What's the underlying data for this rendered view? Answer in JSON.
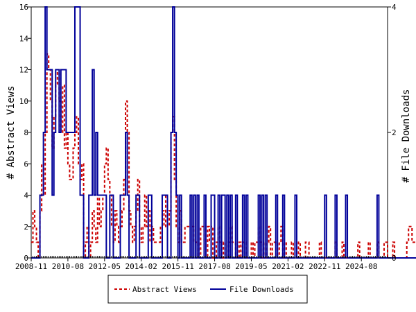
{
  "chart_data": {
    "type": "line",
    "y_left_label": "# Abstract Views",
    "y_right_label": "# File Downloads",
    "y_left_lim": [
      0,
      16
    ],
    "y_right_lim": [
      0,
      4
    ],
    "y_left_ticks": [
      "0",
      "2",
      "4",
      "6",
      "8",
      "10",
      "12",
      "14",
      "16"
    ],
    "y_right_ticks": [
      "0",
      "2",
      "4"
    ],
    "x_start": "2008-11",
    "x_end": "2025-11",
    "x_tick_labels": [
      "2008-11",
      "2010-08",
      "2012-05",
      "2014-02",
      "2015-11",
      "2017-08",
      "2019-05",
      "2021-02",
      "2022-11",
      "2024-08"
    ],
    "legend_position": "bottom",
    "grid": false,
    "colors": {
      "abstract_views": "#cc0000",
      "file_downloads": "#000099"
    },
    "series": [
      {
        "name": "Abstract Views",
        "axis": "left",
        "style": "dashed",
        "values": [
          1,
          3,
          2,
          1,
          0,
          3,
          6,
          4,
          8,
          13,
          12,
          10,
          7,
          9,
          11,
          12,
          10,
          8,
          11,
          7,
          8,
          6,
          5,
          5,
          7,
          8,
          9,
          6,
          5,
          6,
          0,
          1,
          2,
          0,
          1,
          3,
          2,
          1,
          4,
          2,
          3,
          4,
          6,
          7,
          5,
          4,
          2,
          1,
          3,
          2,
          1,
          2,
          3,
          5,
          10,
          8,
          3,
          2,
          1,
          2,
          3,
          5,
          2,
          1,
          2,
          4,
          2,
          3,
          1,
          2,
          1,
          1,
          1,
          1,
          2,
          3,
          2,
          4,
          2,
          3,
          8,
          9,
          5,
          2,
          1,
          3,
          1,
          1,
          2,
          2,
          2,
          2,
          2,
          1,
          1,
          1,
          0,
          2,
          2,
          1,
          0,
          2,
          1,
          2,
          0,
          0,
          1,
          2,
          1,
          0,
          1,
          0,
          0,
          1,
          2,
          1,
          1,
          0,
          0,
          1,
          0,
          1,
          1,
          0,
          0,
          0,
          1,
          0,
          1,
          1,
          2,
          1,
          0,
          1,
          0,
          1,
          2,
          0,
          1,
          1,
          1,
          0,
          1,
          2,
          0,
          1,
          0,
          0,
          0,
          1,
          0,
          0,
          0,
          1,
          0,
          0,
          0,
          1,
          1,
          0,
          0,
          0,
          0,
          0,
          0,
          1,
          0,
          0,
          0,
          0,
          0,
          0,
          0,
          0,
          1,
          0,
          0,
          0,
          1,
          0,
          0,
          0,
          0,
          0,
          0,
          0,
          0,
          1,
          0,
          0,
          0,
          0,
          0,
          1,
          0,
          0,
          0,
          0,
          1,
          0,
          0,
          0,
          1,
          1,
          0,
          0,
          0,
          1,
          0,
          0,
          0,
          0,
          0,
          0,
          0,
          1,
          2,
          2,
          1,
          1,
          1,
          0,
          1,
          1,
          1,
          2,
          1,
          0,
          0,
          1,
          1,
          0,
          0,
          1,
          0,
          0,
          0,
          1,
          0,
          0,
          0,
          0,
          0,
          0,
          1,
          1,
          1,
          1,
          0,
          0,
          0,
          1,
          2,
          1,
          1,
          0,
          0,
          0,
          1,
          0,
          0,
          0,
          0,
          0,
          0,
          0,
          0,
          1,
          1,
          1,
          1,
          1,
          0,
          2,
          1,
          2,
          1,
          1,
          2,
          1,
          0,
          1,
          1,
          0
        ]
      },
      {
        "name": "File Downloads",
        "axis": "right",
        "style": "solid",
        "values": [
          0,
          0,
          0,
          0,
          0,
          1,
          1,
          2,
          4,
          3,
          3,
          3,
          1,
          2,
          3,
          3,
          2,
          3,
          3,
          3,
          2,
          2,
          2,
          2,
          2,
          4,
          4,
          4,
          1,
          1,
          0,
          0,
          0,
          1,
          1,
          3,
          1,
          2,
          1,
          1,
          1,
          1,
          1,
          0,
          0,
          1,
          1,
          0,
          0,
          0,
          0,
          1,
          1,
          1,
          2,
          1,
          0,
          0,
          0,
          0,
          1,
          1,
          0,
          0,
          0,
          0,
          0,
          1,
          1,
          0,
          0,
          0,
          0,
          0,
          0,
          1,
          1,
          1,
          0,
          0,
          2,
          4,
          2,
          1,
          0,
          1,
          0,
          0,
          0,
          0,
          0,
          1,
          0,
          1,
          0,
          1,
          0,
          0,
          0,
          1,
          0,
          0,
          0,
          1,
          1,
          0,
          0,
          1,
          0,
          1,
          1,
          0,
          1,
          0,
          1,
          0,
          0,
          1,
          0,
          0,
          0,
          1,
          0,
          1,
          0,
          0,
          0,
          0,
          0,
          0,
          1,
          0,
          1,
          0,
          1,
          0,
          0,
          0,
          0,
          0,
          1,
          0,
          0,
          0,
          1,
          0,
          0,
          0,
          0,
          0,
          0,
          1,
          0,
          0,
          0,
          0,
          0,
          0,
          0,
          0,
          0,
          0,
          0,
          0,
          0,
          0,
          0,
          0,
          1,
          0,
          0,
          0,
          0,
          0,
          1,
          0,
          0,
          0,
          0,
          0,
          1,
          0,
          0,
          0,
          0,
          0,
          0,
          0,
          0,
          0,
          0,
          0,
          0,
          0,
          0,
          0,
          0,
          0,
          1,
          0,
          0,
          0,
          0,
          0,
          0,
          0,
          0,
          0,
          0,
          0,
          0,
          0,
          0,
          0,
          0,
          0,
          0,
          0,
          0,
          0,
          0,
          0,
          0,
          0,
          0,
          1,
          0,
          1,
          0,
          0,
          0,
          0,
          0,
          0,
          0,
          0,
          0,
          0,
          0,
          0,
          0,
          0,
          0,
          0,
          0,
          0,
          0,
          0,
          0,
          0,
          0,
          0,
          0,
          0,
          1,
          0,
          0,
          0,
          0,
          0,
          0,
          1,
          0,
          1,
          0,
          0,
          0,
          1,
          1,
          1,
          0,
          0,
          1,
          0,
          0,
          0,
          0,
          1,
          0,
          1,
          0,
          0,
          0,
          0,
          0,
          0,
          0,
          0,
          0,
          0,
          0,
          0,
          1,
          1,
          1,
          0,
          0,
          0,
          0,
          1,
          0,
          1,
          0,
          0,
          1,
          0,
          0,
          0,
          0
        ]
      }
    ]
  }
}
